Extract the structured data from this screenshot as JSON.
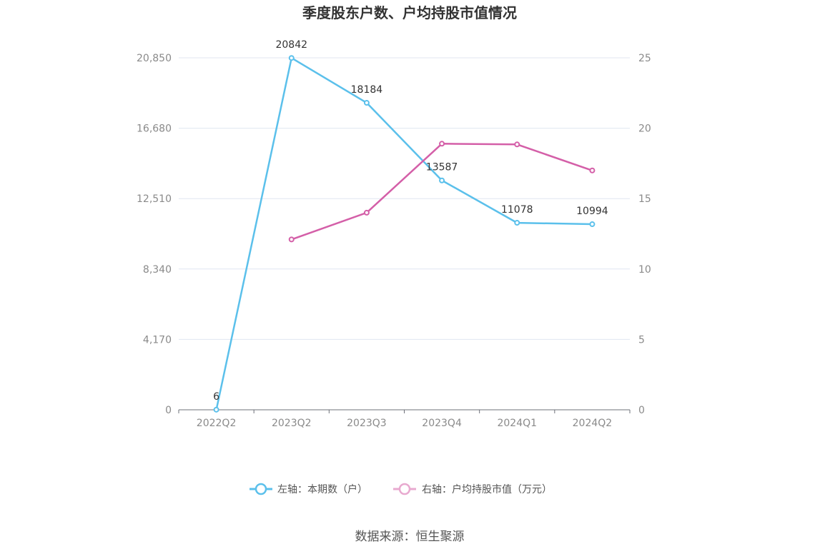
{
  "chart_data": {
    "type": "line",
    "title": "季度股东户数、户均持股市值情况",
    "categories": [
      "2022Q2",
      "2023Q2",
      "2023Q3",
      "2023Q4",
      "2024Q1",
      "2024Q2"
    ],
    "series": [
      {
        "name": "左轴：本期数（户）",
        "axis": "left",
        "color": "#5bc0eb",
        "values": [
          6,
          20842,
          18184,
          13587,
          11078,
          10994
        ],
        "data_labels": [
          "6",
          "20842",
          "18184",
          "13587",
          "11078",
          "10994"
        ]
      },
      {
        "name": "右轴：户均持股市值（万元）",
        "axis": "right",
        "color": "#d45fa8",
        "values": [
          null,
          12.1,
          14.0,
          18.9,
          18.85,
          17.0
        ]
      }
    ],
    "left_axis": {
      "ylim": [
        0,
        20850
      ],
      "ticks": [
        0,
        4170,
        8340,
        12510,
        16680,
        20850
      ],
      "tick_labels": [
        "0",
        "4,170",
        "8,340",
        "12,510",
        "16,680",
        "20,850"
      ]
    },
    "right_axis": {
      "ylim": [
        0,
        25
      ],
      "ticks": [
        0,
        5,
        10,
        15,
        20,
        25
      ],
      "tick_labels": [
        "0",
        "5",
        "10",
        "15",
        "20",
        "25"
      ]
    },
    "grid": true,
    "legend_position": "bottom-center"
  },
  "source_text": "数据来源：恒生聚源"
}
